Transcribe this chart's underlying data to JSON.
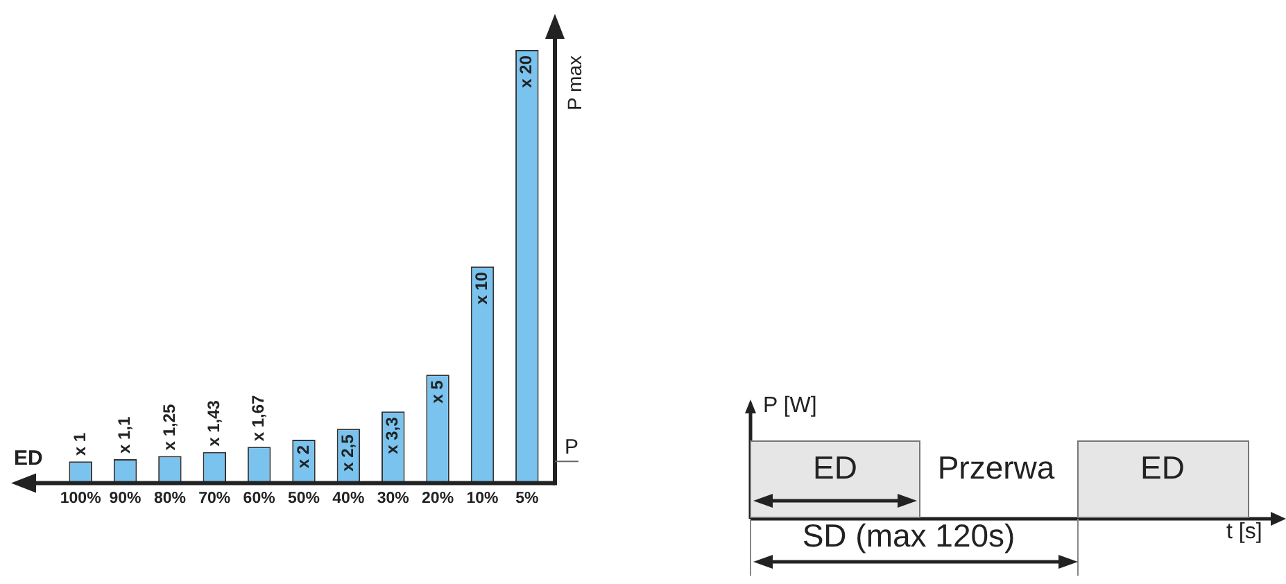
{
  "chart_data": [
    {
      "type": "bar",
      "xlabel": "ED",
      "ylabel": "P max",
      "categories": [
        "100%",
        "90%",
        "80%",
        "70%",
        "60%",
        "50%",
        "40%",
        "30%",
        "20%",
        "10%",
        "5%"
      ],
      "values": [
        1,
        1.1,
        1.25,
        1.43,
        1.67,
        2,
        2.5,
        3.3,
        5,
        10,
        20
      ],
      "value_labels": [
        "x 1",
        "x 1,1",
        "x 1,25",
        "x 1,43",
        "x 1,67",
        "x 2",
        "x 2,5",
        "x 3,3",
        "x 5",
        "x 10",
        "x 20"
      ],
      "color": "#79c3ee",
      "annotations": [
        "P"
      ],
      "grid": false,
      "legend": false
    },
    {
      "type": "other",
      "annotations": [
        "P [W]",
        "ED",
        "Przerwa",
        "ED",
        "t  [s]",
        "SD (max 120s)"
      ]
    }
  ]
}
